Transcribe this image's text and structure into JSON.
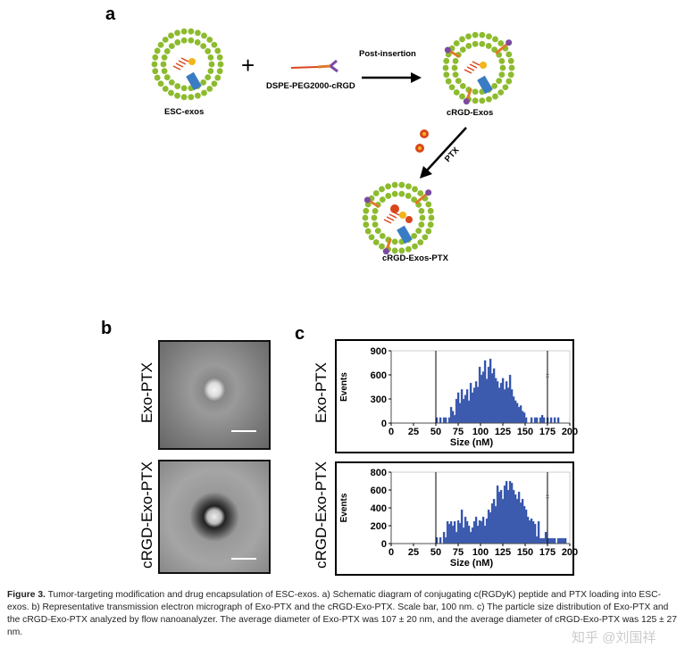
{
  "panel_a": {
    "label": "a",
    "esc_exos": "ESC-exos",
    "plus": "+",
    "reagent": "DSPE-PEG2000-cRGD",
    "step1": "Post-insertion",
    "crgd_exos": "cRGD-Exos",
    "step2": "PTX",
    "product": "cRGD-Exos-PTX",
    "colors": {
      "lipid_bead": "#8dbb2e",
      "drug": "#d9461c",
      "cargo": "#f2b418",
      "peg": "#e07a2a",
      "rgd": "#7b4aa0"
    }
  },
  "panel_b": {
    "label": "b",
    "rows": [
      "Exo-PTX",
      "cRGD-Exo-PTX"
    ]
  },
  "panel_c": {
    "label": "c"
  },
  "chart_data": [
    {
      "type": "bar",
      "row_label": "Exo-PTX",
      "xlabel": "Size (nM)",
      "ylabel": "Events",
      "xlim": [
        0,
        200
      ],
      "ylim": [
        0,
        900
      ],
      "xticks": [
        "0",
        "25",
        "50",
        "75",
        "100",
        "125",
        "150",
        "175",
        "200"
      ],
      "yticks": [
        "0",
        "300",
        "600",
        "900"
      ],
      "gate_lines": [
        50,
        175
      ],
      "bin_start": 50,
      "bin_width": 2,
      "color": "#2f4fa8",
      "values": [
        70,
        0,
        70,
        0,
        70,
        70,
        0,
        70,
        200,
        150,
        100,
        300,
        380,
        250,
        420,
        300,
        350,
        420,
        280,
        500,
        380,
        440,
        520,
        450,
        700,
        600,
        640,
        780,
        550,
        700,
        800,
        620,
        680,
        560,
        520,
        440,
        500,
        560,
        420,
        520,
        440,
        600,
        420,
        330,
        280,
        250,
        200,
        220,
        150,
        130,
        70,
        0,
        0,
        70,
        0,
        70,
        70,
        0,
        70,
        100,
        70,
        0,
        70,
        0,
        70,
        0,
        70,
        0,
        70,
        0,
        0,
        0,
        0,
        0,
        0
      ]
    },
    {
      "type": "bar",
      "row_label": "cRGD-Exo-PTX",
      "xlabel": "Size (nM)",
      "ylabel": "Events",
      "xlim": [
        0,
        200
      ],
      "ylim": [
        0,
        800
      ],
      "xticks": [
        "0",
        "25",
        "50",
        "75",
        "100",
        "125",
        "150",
        "175",
        "200"
      ],
      "yticks": [
        "0",
        "200",
        "400",
        "600",
        "800"
      ],
      "gate_lines": [
        50,
        175
      ],
      "bin_start": 50,
      "bin_width": 2,
      "color": "#2f4fa8",
      "values": [
        70,
        0,
        70,
        0,
        130,
        70,
        250,
        220,
        250,
        200,
        250,
        130,
        260,
        230,
        380,
        180,
        300,
        250,
        200,
        130,
        180,
        250,
        300,
        200,
        260,
        250,
        300,
        200,
        280,
        380,
        350,
        450,
        500,
        420,
        650,
        580,
        600,
        500,
        650,
        700,
        600,
        700,
        680,
        600,
        550,
        500,
        580,
        460,
        500,
        420,
        380,
        300,
        260,
        280,
        250,
        220,
        80,
        250,
        60,
        60,
        60,
        130,
        60,
        60,
        60,
        60,
        60,
        0,
        60,
        60,
        60,
        60,
        60,
        0,
        0
      ]
    }
  ],
  "caption": {
    "lead": "Figure 3.",
    "text": "Tumor-targeting modification and drug encapsulation of ESC-exos. a) Schematic diagram of conjugating c(RGDyK) peptide and PTX loading into ESC-exos. b) Representative transmission electron micrograph of Exo-PTX and the cRGD-Exo-PTX. Scale bar, 100 nm. c) The particle size distribution of Exo-PTX and the cRGD-Exo-PTX analyzed by flow nanoanalyzer. The average diameter of Exo-PTX was 107 ± 20 nm, and the average diameter of cRGD-Exo-PTX was 125 ± 27 nm."
  },
  "watermark": "知乎 @刘国祥"
}
